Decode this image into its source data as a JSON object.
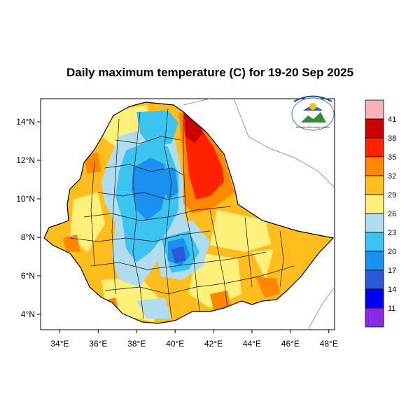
{
  "title": "Daily maximum temperature (C) for 19-20 Sep 2025",
  "map": {
    "lon_range": [
      33,
      48.2
    ],
    "lat_range": [
      3.2,
      15
    ],
    "lon_ticks": [
      {
        "value": 34,
        "label": "34°E"
      },
      {
        "value": 36,
        "label": "36°E"
      },
      {
        "value": 38,
        "label": "38°E"
      },
      {
        "value": 40,
        "label": "40°E"
      },
      {
        "value": 42,
        "label": "42°E"
      },
      {
        "value": 44,
        "label": "44°E"
      },
      {
        "value": 46,
        "label": "46°E"
      },
      {
        "value": 48,
        "label": "48°E"
      }
    ],
    "lat_ticks": [
      {
        "value": 14,
        "label": "14°N"
      },
      {
        "value": 12,
        "label": "12°N"
      },
      {
        "value": 10,
        "label": "10°N"
      },
      {
        "value": 8,
        "label": "8°N"
      },
      {
        "value": 6,
        "label": "6°N"
      },
      {
        "value": 4,
        "label": "4°N"
      }
    ]
  },
  "colorbar": {
    "levels": [
      "41",
      "38",
      "35",
      "32",
      "29",
      "26",
      "23",
      "20",
      "17",
      "14",
      "11"
    ],
    "colors": [
      "#f5b3b8",
      "#cc0000",
      "#ff2200",
      "#ff8800",
      "#ffbe1e",
      "#fff07a",
      "#b0dcf0",
      "#3cc4f0",
      "#1a90f0",
      "#2a5ad8",
      "#0000f0",
      "#8a2ae6"
    ]
  },
  "logo_text": "Ethiopian Meteorology Institute",
  "palette": {
    "orange": "#ffbe1e",
    "deep_orange": "#ff8800",
    "red": "#ff2200",
    "dark_red": "#cc0000",
    "yellow": "#fff07a",
    "light_blue": "#b0dcf0",
    "sky": "#3cc4f0",
    "blue": "#1a90f0",
    "deep_blue": "#2a5ad8",
    "navy": "#0000f0"
  }
}
